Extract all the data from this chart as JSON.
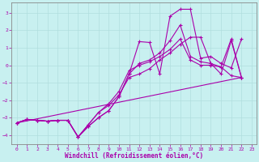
{
  "xlabel": "Windchill (Refroidissement éolien,°C)",
  "bg_color": "#c8f0f0",
  "line_color": "#aa00aa",
  "grid_color": "#b0dede",
  "ylim": [
    -4.5,
    3.6
  ],
  "xlim": [
    -0.5,
    23.5
  ],
  "yticks": [
    -4,
    -3,
    -2,
    -1,
    0,
    1,
    2,
    3
  ],
  "xticks": [
    0,
    1,
    2,
    3,
    4,
    5,
    6,
    7,
    8,
    9,
    10,
    11,
    12,
    13,
    14,
    15,
    16,
    17,
    18,
    19,
    20,
    21,
    22,
    23
  ],
  "lines": [
    {
      "x": [
        0,
        1,
        2,
        3,
        4,
        5,
        6,
        7,
        8,
        9,
        10,
        11,
        12,
        13,
        14,
        15,
        16,
        17,
        18,
        19,
        20,
        21,
        22
      ],
      "y": [
        -3.3,
        -3.1,
        -3.15,
        -3.2,
        -3.15,
        -3.15,
        -4.1,
        -3.5,
        -3.0,
        -2.6,
        -1.8,
        -0.5,
        1.35,
        1.3,
        -0.5,
        2.8,
        3.2,
        3.2,
        0.4,
        0.5,
        0.1,
        -0.15,
        1.5
      ]
    },
    {
      "x": [
        0,
        1,
        2,
        3,
        4,
        5,
        6,
        7,
        8,
        9,
        10,
        11,
        12,
        13,
        14,
        15,
        16,
        17,
        18,
        19,
        20,
        21,
        22
      ],
      "y": [
        -3.3,
        -3.1,
        -3.15,
        -3.2,
        -3.15,
        -3.15,
        -4.1,
        -3.5,
        -3.0,
        -2.6,
        -1.8,
        -0.5,
        0.1,
        0.3,
        0.7,
        1.4,
        2.3,
        0.5,
        0.2,
        0.1,
        -0.1,
        1.5,
        -0.7
      ]
    },
    {
      "x": [
        0,
        1,
        2,
        3,
        4,
        5,
        6,
        7,
        8,
        9,
        10,
        11,
        12,
        13,
        14,
        15,
        16,
        17,
        18,
        19,
        20,
        21,
        22
      ],
      "y": [
        -3.3,
        -3.1,
        -3.15,
        -3.2,
        -3.15,
        -3.15,
        -4.1,
        -3.4,
        -2.7,
        -2.2,
        -1.5,
        -0.3,
        0.0,
        0.2,
        0.5,
        0.9,
        1.5,
        0.3,
        0.0,
        0.0,
        -0.1,
        -0.6,
        -0.7
      ]
    },
    {
      "x": [
        0,
        1,
        2,
        3,
        4,
        5,
        6,
        7,
        8,
        9,
        10,
        11,
        12,
        13,
        14,
        15,
        16,
        17,
        18,
        19,
        20,
        21,
        22
      ],
      "y": [
        -3.3,
        -3.1,
        -3.15,
        -3.2,
        -3.15,
        -3.15,
        -4.1,
        -3.4,
        -2.7,
        -2.3,
        -1.7,
        -0.7,
        -0.5,
        -0.2,
        0.3,
        0.7,
        1.2,
        1.6,
        1.6,
        0.1,
        -0.5,
        1.4,
        -0.7
      ]
    },
    {
      "x": [
        0,
        22
      ],
      "y": [
        -3.3,
        -0.7
      ]
    }
  ]
}
